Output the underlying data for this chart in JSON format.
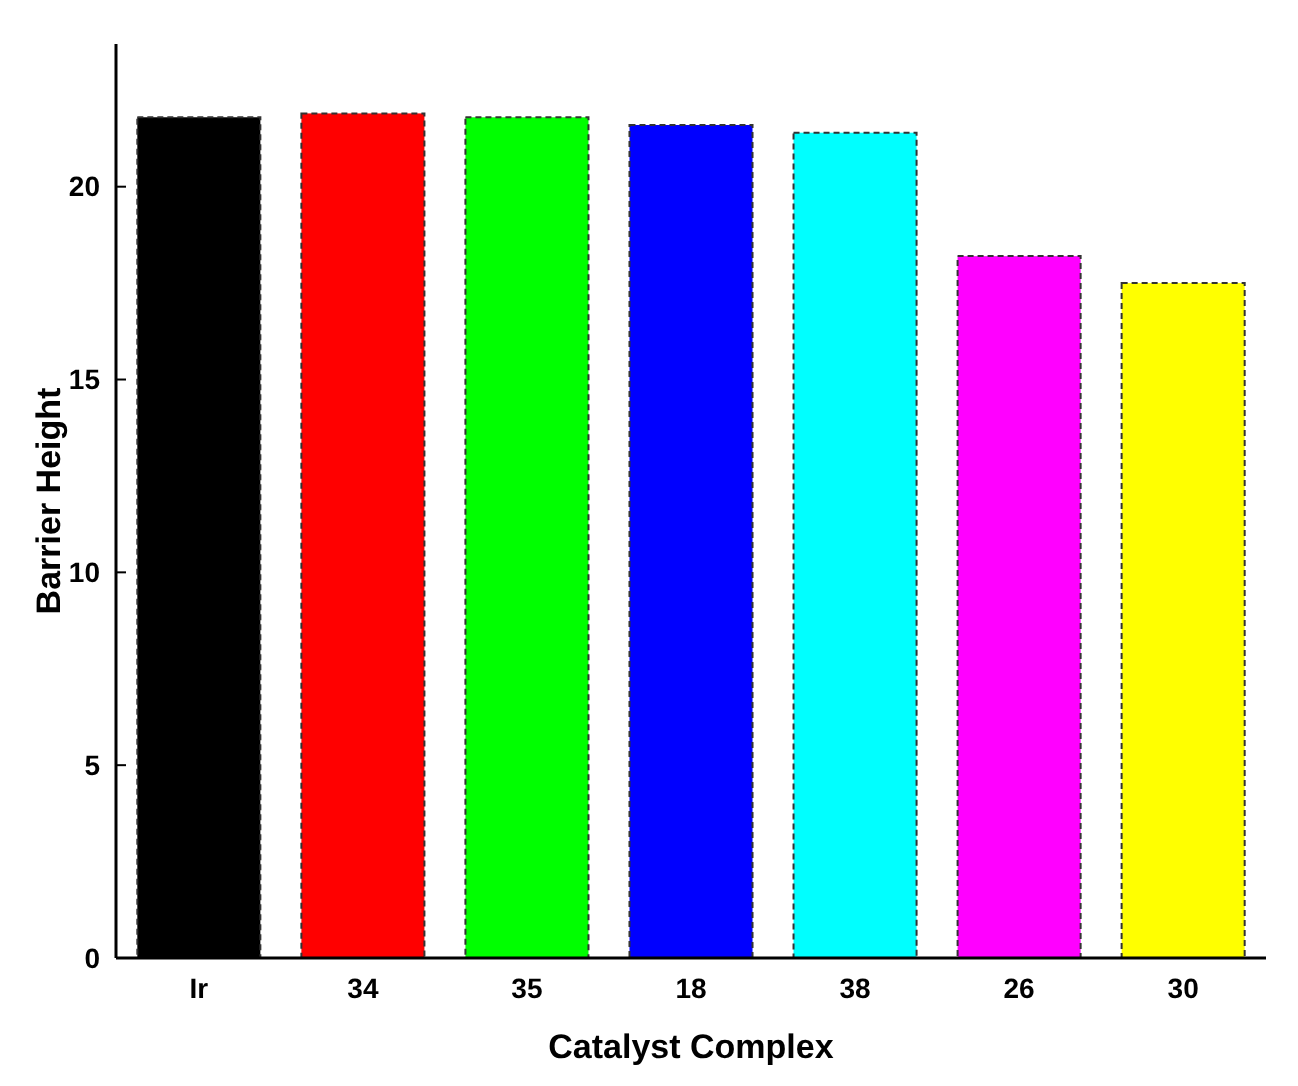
{
  "chart_data": {
    "type": "bar",
    "xlabel": "Catalyst Complex",
    "ylabel": "Barrier Height",
    "categories": [
      "Ir",
      "34",
      "35",
      "18",
      "38",
      "26",
      "30"
    ],
    "values": [
      21.8,
      21.9,
      21.8,
      21.6,
      21.4,
      18.2,
      17.5
    ],
    "colors": [
      "#000000",
      "#ff0000",
      "#00ff00",
      "#0000ff",
      "#00ffff",
      "#ff00ff",
      "#ffff00"
    ],
    "ylim": [
      0,
      23.7
    ],
    "yticks": [
      0,
      5,
      10,
      15,
      20
    ],
    "grid": false
  }
}
